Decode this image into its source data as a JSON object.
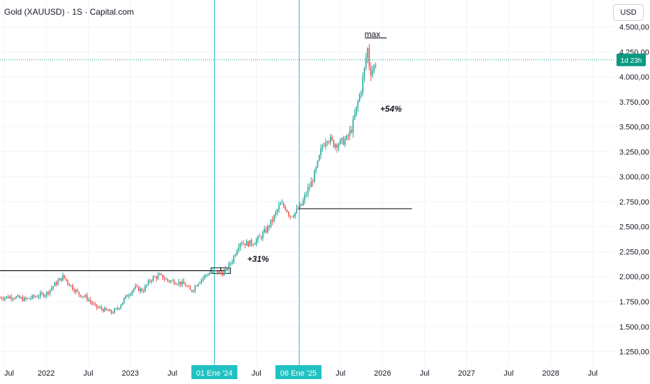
{
  "header": {
    "title": "Gold (XAUUSD) · 1S · Capital.com",
    "currency": "USD"
  },
  "price_badge": "1d 23h",
  "colors": {
    "up": "#26a69a",
    "down": "#ef5350",
    "vline": "#22c1c3",
    "badge": "#089981"
  },
  "chart_data": {
    "type": "candlestick",
    "title": "Gold (XAUUSD) · 1S · Capital.com",
    "x_tick_labels": [
      "Jul",
      "2022",
      "Jul",
      "2023",
      "Jul",
      "01 Ene '24",
      "Jul",
      "06 Ene '25",
      "Jul",
      "2026",
      "Jul",
      "2027",
      "Jul",
      "2028",
      "Jul"
    ],
    "x_tick_dates": [
      2021.5,
      2022.0,
      2022.5,
      2023.0,
      2023.5,
      2024.0,
      2024.5,
      2025.0,
      2025.5,
      2026.0,
      2026.5,
      2027.0,
      2027.5,
      2028.0,
      2028.5
    ],
    "highlighted_x_labels": [
      "01 Ene '24",
      "06 Ene '25"
    ],
    "y_tick_labels": [
      "4.500,00",
      "4.250,00",
      "4.000,00",
      "3.750,00",
      "3.500,00",
      "3.250,00",
      "3.000,00",
      "2.750,00",
      "2.500,00",
      "2.250,00",
      "2.000,00",
      "1.750,00",
      "1.500,00",
      "1.250,00"
    ],
    "y_ticks": [
      4500,
      4250,
      4000,
      3750,
      3500,
      3250,
      3000,
      2750,
      2500,
      2250,
      2000,
      1750,
      1500,
      1250
    ],
    "ylim": [
      1100,
      4560
    ],
    "xlim": [
      2021.45,
      2028.75
    ],
    "current_price": 4170,
    "series_points": [
      [
        2021.45,
        1790
      ],
      [
        2021.6,
        1800
      ],
      [
        2021.75,
        1770
      ],
      [
        2021.9,
        1810
      ],
      [
        2022.0,
        1830
      ],
      [
        2022.1,
        1920
      ],
      [
        2022.2,
        2000
      ],
      [
        2022.28,
        1920
      ],
      [
        2022.38,
        1830
      ],
      [
        2022.48,
        1790
      ],
      [
        2022.58,
        1700
      ],
      [
        2022.68,
        1670
      ],
      [
        2022.78,
        1640
      ],
      [
        2022.85,
        1680
      ],
      [
        2022.95,
        1800
      ],
      [
        2023.05,
        1890
      ],
      [
        2023.15,
        1860
      ],
      [
        2023.25,
        1980
      ],
      [
        2023.35,
        2010
      ],
      [
        2023.45,
        1960
      ],
      [
        2023.55,
        1950
      ],
      [
        2023.65,
        1920
      ],
      [
        2023.72,
        1850
      ],
      [
        2023.82,
        1960
      ],
      [
        2023.92,
        2030
      ],
      [
        2024.0,
        2050
      ],
      [
        2024.08,
        2030
      ],
      [
        2024.14,
        2060
      ],
      [
        2024.22,
        2180
      ],
      [
        2024.3,
        2350
      ],
      [
        2024.38,
        2330
      ],
      [
        2024.46,
        2340
      ],
      [
        2024.54,
        2390
      ],
      [
        2024.62,
        2470
      ],
      [
        2024.7,
        2580
      ],
      [
        2024.78,
        2720
      ],
      [
        2024.84,
        2700
      ],
      [
        2024.9,
        2610
      ],
      [
        2024.96,
        2640
      ],
      [
        2025.04,
        2720
      ],
      [
        2025.1,
        2850
      ],
      [
        2025.16,
        2950
      ],
      [
        2025.22,
        3100
      ],
      [
        2025.28,
        3300
      ],
      [
        2025.34,
        3400
      ],
      [
        2025.42,
        3330
      ],
      [
        2025.5,
        3340
      ],
      [
        2025.58,
        3380
      ],
      [
        2025.64,
        3500
      ],
      [
        2025.7,
        3720
      ],
      [
        2025.75,
        3900
      ],
      [
        2025.79,
        4100
      ],
      [
        2025.82,
        4300
      ],
      [
        2025.85,
        4050
      ],
      [
        2025.89,
        4080
      ],
      [
        2025.93,
        4170
      ]
    ],
    "annotations": [
      {
        "text": "max",
        "x": 2025.88,
        "y": 4400
      },
      {
        "text": "+54%",
        "x": 2026.1,
        "y": 3650
      },
      {
        "text": "+31%",
        "x": 2024.52,
        "y": 2150
      }
    ],
    "horizontal_levels": [
      {
        "y": 2060,
        "x_from": 2021.45,
        "x_to": 2024.14
      },
      {
        "y": 2680,
        "x_from": 2025.0,
        "x_to": 2026.35
      },
      {
        "y": 4390,
        "x_from": 2025.79,
        "x_to": 2026.05
      }
    ],
    "vertical_markers": [
      2024.0,
      2025.01
    ],
    "legend": "none",
    "grid": true
  }
}
